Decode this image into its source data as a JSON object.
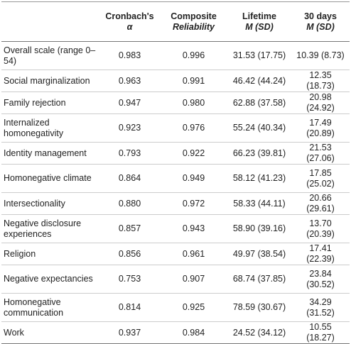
{
  "table": {
    "headers": [
      {
        "top": "",
        "bottom": ""
      },
      {
        "top": "Cronbach's",
        "bottom": "α"
      },
      {
        "top": "Composite",
        "bottom": "Reliability"
      },
      {
        "top": "Lifetime",
        "bottom": "M (SD)"
      },
      {
        "top": "30 days",
        "bottom": "M (SD)"
      }
    ],
    "rows": [
      [
        "Overall scale (range 0–54)",
        "0.983",
        "0.996",
        "31.53 (17.75)",
        "10.39 (8.73)"
      ],
      [
        "Social marginalization",
        "0.963",
        "0.991",
        "46.42 (44.24)",
        "12.35 (18.73)"
      ],
      [
        "Family rejection",
        "0.947",
        "0.980",
        "62.88 (37.58)",
        "20.98 (24.92)"
      ],
      [
        "Internalized homonegativity",
        "0.923",
        "0.976",
        "55.24 (40.34)",
        "17.49 (20.89)"
      ],
      [
        "Identity management",
        "0.793",
        "0.922",
        "66.23 (39.81)",
        "21.53 (27.06)"
      ],
      [
        "Homonegative climate",
        "0.864",
        "0.949",
        "58.12 (41.23)",
        "17.85 (25.02)"
      ],
      [
        "Intersectionality",
        "0.880",
        "0.972",
        "58.33 (44.11)",
        "20.66 (29.61)"
      ],
      [
        "Negative disclosure experiences",
        "0.857",
        "0.943",
        "58.90 (39.16)",
        "13.70 (20.39)"
      ],
      [
        "Religion",
        "0.856",
        "0.961",
        "49.97 (38.54)",
        "17.41 (22.39)"
      ],
      [
        "Negative expectancies",
        "0.753",
        "0.907",
        "68.74 (37.85)",
        "23.84 (30.52)"
      ],
      [
        "Homonegative communication",
        "0.814",
        "0.925",
        "78.59 (30.67)",
        "34.29 (31.52)"
      ],
      [
        "Work",
        "0.937",
        "0.984",
        "24.52 (34.12)",
        "10.55 (18.27)"
      ]
    ]
  }
}
